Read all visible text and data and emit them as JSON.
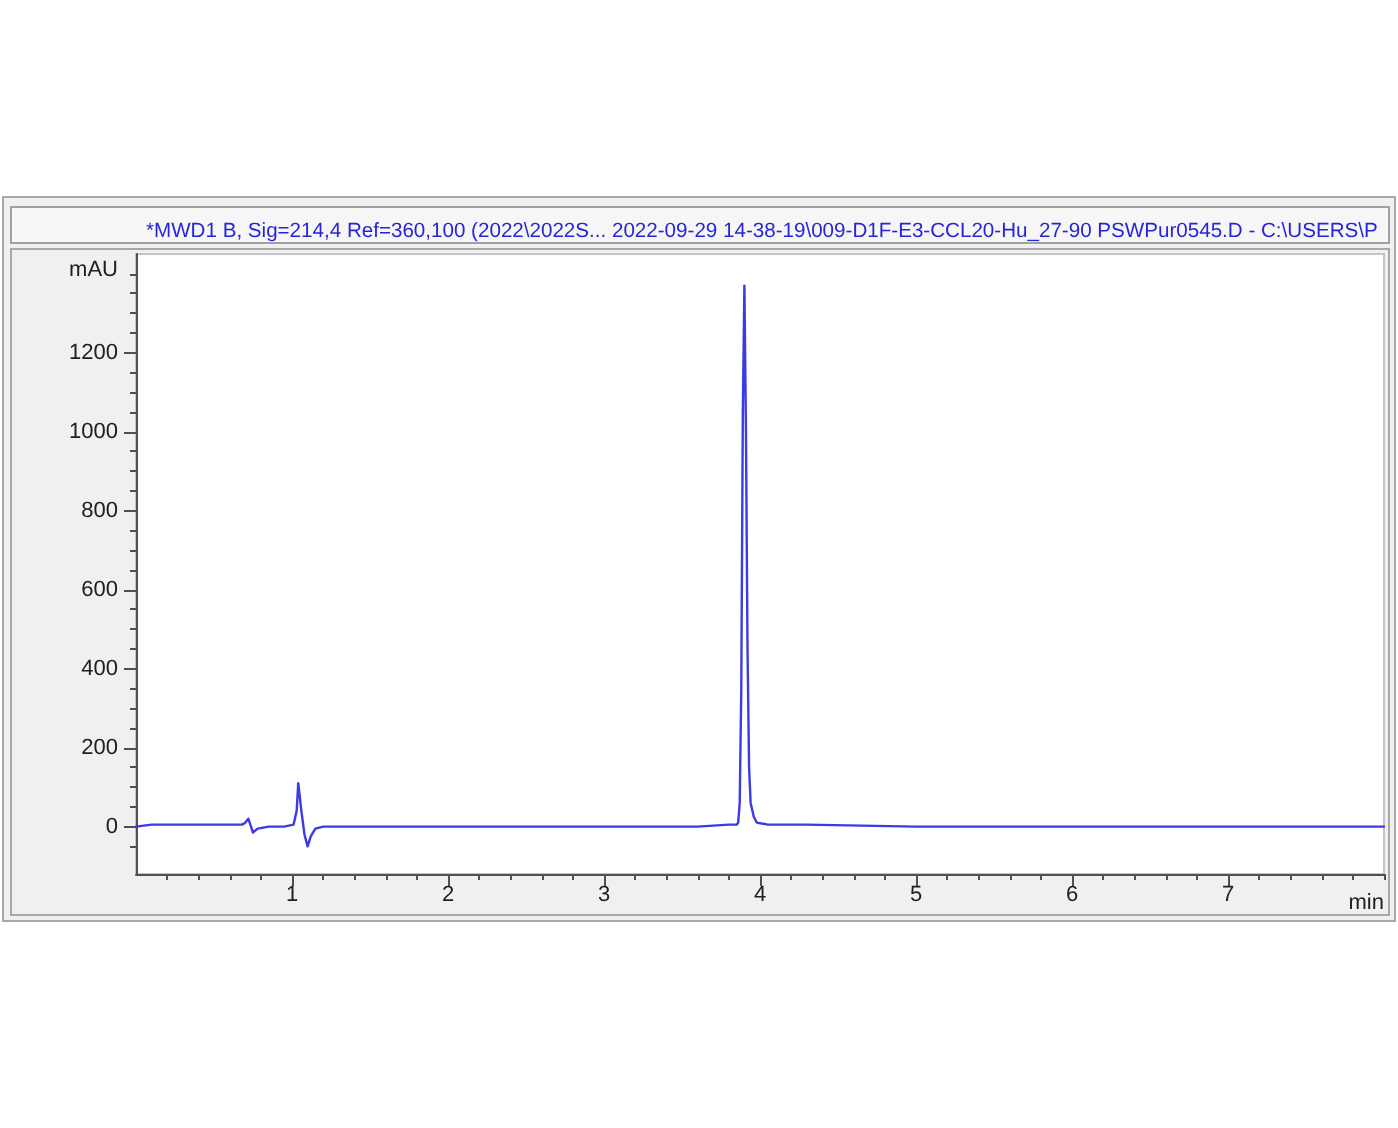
{
  "chart_data": {
    "type": "line",
    "title": "*MWD1 B, Sig=214,4 Ref=360,100 (2022\\2022S... 2022-09-29 14-38-19\\009-D1F-E3-CCL20-Hu_27-90 PSWPur0545.D - C:\\USERS\\P",
    "xlabel": "min",
    "ylabel": "mAU",
    "color": "#3a3ae6",
    "x": [
      0,
      0.1,
      0.2,
      0.3,
      0.4,
      0.5,
      0.6,
      0.68,
      0.7,
      0.72,
      0.75,
      0.78,
      0.85,
      0.95,
      1.01,
      1.03,
      1.04,
      1.06,
      1.08,
      1.1,
      1.12,
      1.15,
      1.2,
      1.4,
      2,
      2.5,
      3,
      3.4,
      3.6,
      3.8,
      3.85,
      3.86,
      3.87,
      3.88,
      3.89,
      3.9,
      3.91,
      3.92,
      3.93,
      3.94,
      3.96,
      3.98,
      4.05,
      4.3,
      5,
      6,
      7,
      8
    ],
    "values": [
      0,
      5,
      5,
      5,
      5,
      5,
      5,
      5,
      10,
      20,
      -15,
      -5,
      0,
      0,
      5,
      40,
      110,
      40,
      -20,
      -50,
      -25,
      -5,
      0,
      0,
      0,
      0,
      0,
      0,
      0,
      5,
      5,
      10,
      60,
      350,
      1050,
      1370,
      1000,
      450,
      150,
      60,
      25,
      10,
      5,
      5,
      0,
      0,
      0,
      0
    ],
    "xlim": [
      0,
      8
    ],
    "ylim": [
      -120,
      1450
    ],
    "xticks": [
      {
        "value": 0.2,
        "label": null
      },
      {
        "value": 0.4,
        "label": null
      },
      {
        "value": 0.6,
        "label": null
      },
      {
        "value": 0.8,
        "label": null
      },
      1,
      {
        "value": 1.2,
        "label": null
      },
      {
        "value": 1.4,
        "label": null
      },
      {
        "value": 1.6,
        "label": null
      },
      {
        "value": 1.8,
        "label": null
      },
      2,
      {
        "value": 2.2,
        "label": null
      },
      {
        "value": 2.4,
        "label": null
      },
      {
        "value": 2.6,
        "label": null
      },
      {
        "value": 2.8,
        "label": null
      },
      3,
      {
        "value": 3.2,
        "label": null
      },
      {
        "value": 3.4,
        "label": null
      },
      {
        "value": 3.6,
        "label": null
      },
      {
        "value": 3.8,
        "label": null
      },
      4,
      {
        "value": 4.2,
        "label": null
      },
      {
        "value": 4.4,
        "label": null
      },
      {
        "value": 4.6,
        "label": null
      },
      {
        "value": 4.8,
        "label": null
      },
      5,
      {
        "value": 5.2,
        "label": null
      },
      {
        "value": 5.4,
        "label": null
      },
      {
        "value": 5.6,
        "label": null
      },
      {
        "value": 5.8,
        "label": null
      },
      6,
      {
        "value": 6.2,
        "label": null
      },
      {
        "value": 6.4,
        "label": null
      },
      {
        "value": 6.6,
        "label": null
      },
      {
        "value": 6.8,
        "label": null
      },
      7,
      {
        "value": 7.2,
        "label": null
      },
      {
        "value": 7.4,
        "label": null
      },
      {
        "value": 7.6,
        "label": null
      },
      {
        "value": 7.8,
        "label": null
      },
      {
        "value": 8,
        "label": null
      }
    ],
    "yticks": [
      {
        "value": -50,
        "label": null
      },
      0,
      {
        "value": 50,
        "label": null
      },
      {
        "value": 100,
        "label": null
      },
      {
        "value": 150,
        "label": null
      },
      200,
      {
        "value": 250,
        "label": null
      },
      {
        "value": 300,
        "label": null
      },
      {
        "value": 350,
        "label": null
      },
      400,
      {
        "value": 450,
        "label": null
      },
      {
        "value": 500,
        "label": null
      },
      {
        "value": 550,
        "label": null
      },
      600,
      {
        "value": 650,
        "label": null
      },
      {
        "value": 700,
        "label": null
      },
      {
        "value": 750,
        "label": null
      },
      800,
      {
        "value": 850,
        "label": null
      },
      {
        "value": 900,
        "label": null
      },
      {
        "value": 950,
        "label": null
      },
      1000,
      {
        "value": 1050,
        "label": null
      },
      {
        "value": 1100,
        "label": null
      },
      {
        "value": 1150,
        "label": null
      },
      1200,
      {
        "value": 1250,
        "label": null
      },
      {
        "value": 1300,
        "label": null
      },
      {
        "value": 1350,
        "label": null
      },
      {
        "value": 1400,
        "label": null
      }
    ]
  }
}
